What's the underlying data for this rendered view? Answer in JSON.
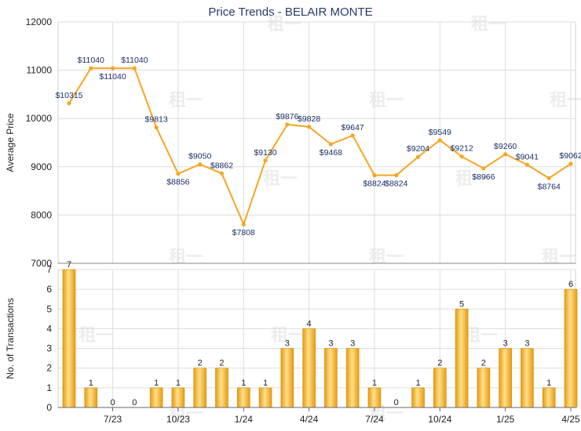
{
  "chart_data": [
    {
      "type": "line",
      "title": "Price Trends - BELAIR MONTE",
      "ylabel": "Average Price",
      "ylim": [
        7000,
        12000
      ],
      "y_ticks": [
        "7000",
        "8000",
        "9000",
        "10000",
        "11000",
        "12000"
      ],
      "grid": true,
      "series": [
        {
          "color": "#f5a623",
          "values": [
            10315,
            11040,
            11040,
            11040,
            9813,
            8856,
            9050,
            8862,
            7808,
            9130,
            9876,
            9828,
            9468,
            9647,
            8824,
            8824,
            9204,
            9549,
            9212,
            8966,
            9260,
            9041,
            8764,
            9062
          ],
          "labels": [
            "$10315",
            "$11040",
            "$11040",
            "$11040",
            "$9813",
            "$8856",
            "$9050",
            "$8862",
            "$7808",
            "$9130",
            "$9876",
            "$9828",
            "$9468",
            "$9647",
            "$8824",
            "$8824",
            "$9204",
            "$9549",
            "$9212",
            "$8966",
            "$9260",
            "$9041",
            "$8764",
            "$9062"
          ]
        }
      ]
    },
    {
      "type": "bar",
      "ylabel": "No. of Transactions",
      "ylim": [
        0,
        7
      ],
      "y_ticks": [
        "0",
        "1",
        "2",
        "3",
        "4",
        "5",
        "6",
        "7"
      ],
      "grid": true,
      "x_tick_labels": [
        "7/23",
        "10/23",
        "1/24",
        "4/24",
        "7/24",
        "10/24",
        "1/25",
        "4/25"
      ],
      "values": [
        7,
        1,
        0,
        0,
        1,
        1,
        2,
        2,
        1,
        1,
        3,
        4,
        3,
        3,
        1,
        0,
        1,
        2,
        5,
        2,
        3,
        3,
        1,
        6
      ],
      "labels": [
        "7",
        "1",
        "0",
        "0",
        "1",
        "1",
        "2",
        "2",
        "1",
        "1",
        "3",
        "4",
        "3",
        "3",
        "1",
        "0",
        "1",
        "2",
        "5",
        "2",
        "3",
        "3",
        "1",
        "6"
      ],
      "color": "#f5a623"
    }
  ],
  "watermark": "租一"
}
